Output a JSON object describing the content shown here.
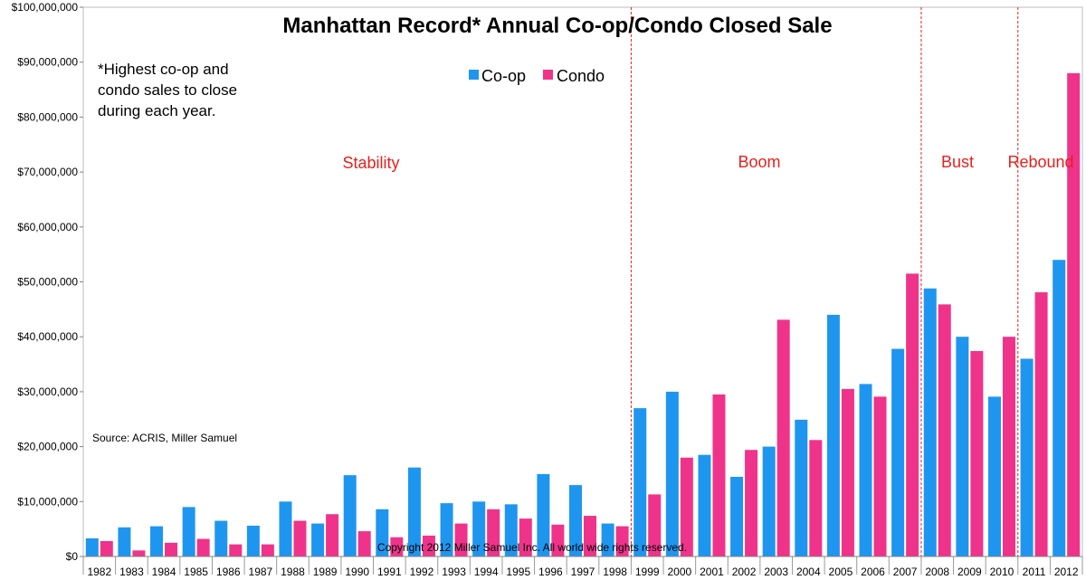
{
  "chart_data": {
    "type": "bar",
    "title": "Manhattan Record* Annual Co-op/Condo Closed Sale",
    "xlabel": "",
    "ylabel": "",
    "ylim": [
      0,
      100000000
    ],
    "y_ticks": [
      "$0",
      "$10,000,000",
      "$20,000,000",
      "$30,000,000",
      "$40,000,000",
      "$50,000,000",
      "$60,000,000",
      "$70,000,000",
      "$80,000,000",
      "$90,000,000",
      "$100,000,000"
    ],
    "grid": false,
    "legend_position": "top-center",
    "categories": [
      "1982",
      "1983",
      "1984",
      "1985",
      "1986",
      "1987",
      "1988",
      "1989",
      "1990",
      "1991",
      "1992",
      "1993",
      "1994",
      "1995",
      "1996",
      "1997",
      "1998",
      "1999",
      "2000",
      "2001",
      "2002",
      "2003",
      "2004",
      "2005",
      "2006",
      "2007",
      "2008",
      "2009",
      "2010",
      "2011",
      "2012"
    ],
    "series": [
      {
        "name": "Co-op",
        "color": "#1e96f0",
        "values": [
          3300000,
          5300000,
          5500000,
          9000000,
          6500000,
          5600000,
          10000000,
          6000000,
          14800000,
          8600000,
          16200000,
          9700000,
          10000000,
          9500000,
          15000000,
          13000000,
          6000000,
          27000000,
          30000000,
          18500000,
          14500000,
          20000000,
          24900000,
          44000000,
          31400000,
          37800000,
          48800000,
          40000000,
          29100000,
          36000000,
          54000000
        ]
      },
      {
        "name": "Condo",
        "color": "#f0338a",
        "values": [
          2800000,
          1100000,
          2500000,
          3200000,
          2200000,
          2200000,
          6500000,
          7700000,
          4600000,
          3500000,
          3800000,
          6000000,
          8600000,
          6900000,
          5800000,
          7400000,
          5500000,
          11300000,
          18000000,
          29500000,
          19400000,
          43100000,
          21200000,
          30500000,
          29100000,
          51500000,
          45900000,
          37400000,
          40000000,
          48100000,
          88000000
        ]
      }
    ],
    "annotations": {
      "note": [
        "*Highest co-op and",
        "condo sales to close",
        "during each year."
      ],
      "source": "Source: ACRIS, Miller Samuel",
      "copyright": "Copyright 2012 Miller Samuel Inc.  All world wide rights reserved.",
      "periods": [
        {
          "label": "Stability",
          "x_center": "1988.5"
        },
        {
          "label": "Boom",
          "x_center": "2002.5"
        },
        {
          "label": "Bust",
          "x_center": "2009"
        },
        {
          "label": "Rebound",
          "x_center": "2011.5"
        }
      ],
      "dividers_after": [
        "1998",
        "2007",
        "2010"
      ],
      "divider_color": "#e8201c"
    }
  }
}
